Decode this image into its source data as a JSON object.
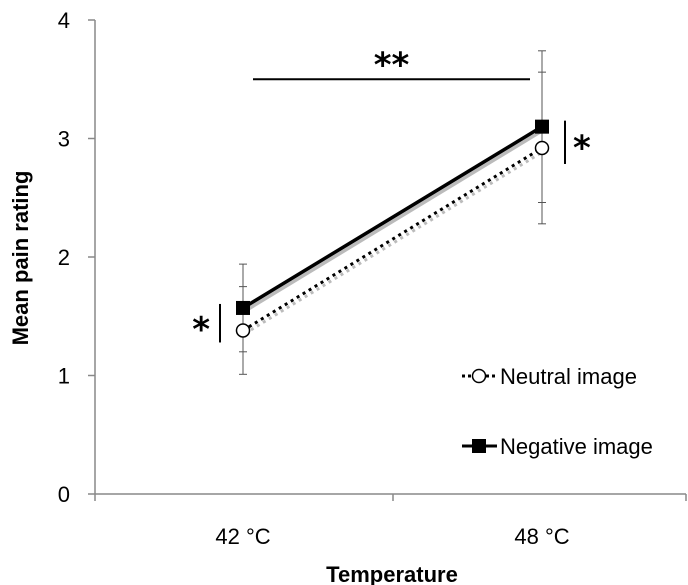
{
  "chart_data": {
    "type": "line",
    "xlabel": "Temperature",
    "ylabel": "Mean pain rating",
    "categories": [
      "42 °C",
      "48 °C"
    ],
    "ylim": [
      0,
      4
    ],
    "yticks": [
      "0",
      "1",
      "2",
      "3",
      "4"
    ],
    "grid": false,
    "legend_position": "bottom-right",
    "series": [
      {
        "name": "Neutral image",
        "values": [
          1.38,
          2.92
        ],
        "errors": [
          0.37,
          0.64
        ],
        "style": "dotted",
        "marker": "open-circle",
        "color": "#000000"
      },
      {
        "name": "Negative image",
        "values": [
          1.57,
          3.1
        ],
        "errors": [
          0.37,
          0.64
        ],
        "style": "solid",
        "marker": "filled-square",
        "color": "#000000"
      }
    ],
    "annotations": [
      {
        "text": "*",
        "category": "42 °C",
        "side": "left"
      },
      {
        "text": "*",
        "category": "48 °C",
        "side": "right"
      },
      {
        "text": "**",
        "between": [
          "42 °C",
          "48 °C"
        ]
      }
    ]
  }
}
